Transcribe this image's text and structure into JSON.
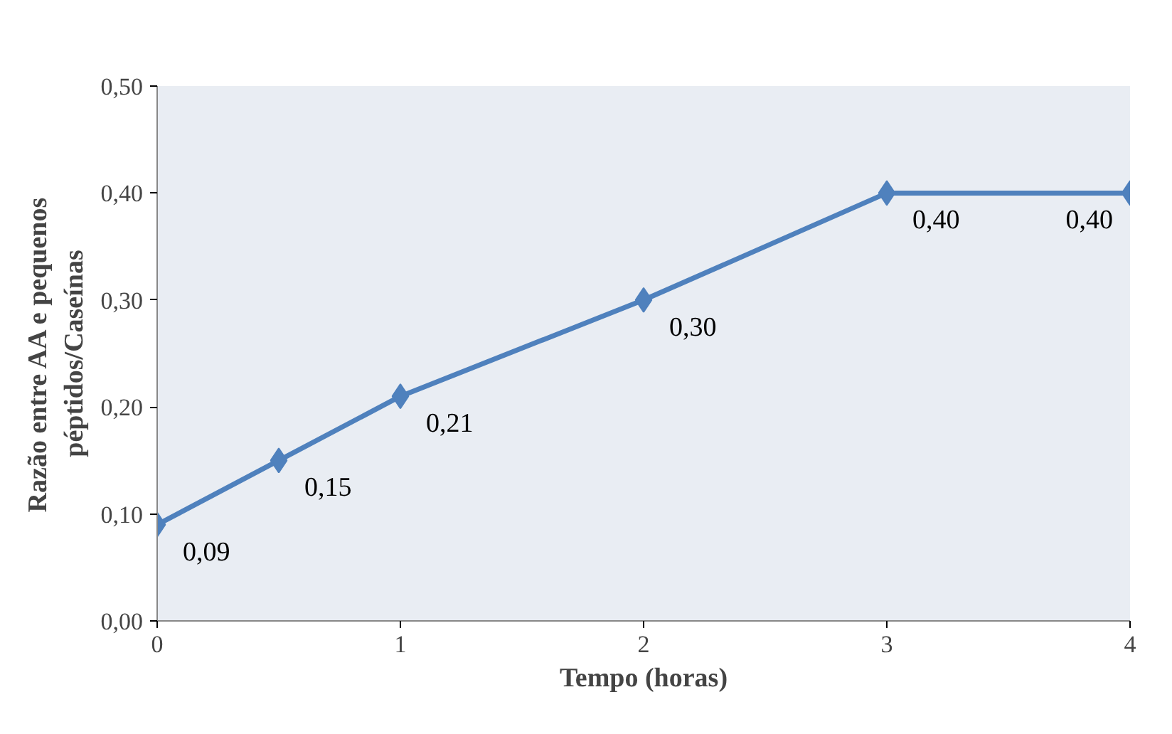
{
  "chart_data": {
    "type": "line",
    "xlabel": "Tempo (horas)",
    "ylabel": "Razão entre AA e pequenos\npéptidos/Caseínas",
    "x": [
      0,
      0.5,
      1,
      2,
      3,
      4
    ],
    "series": [
      {
        "color": "#4f81bd",
        "values": [
          0.09,
          0.15,
          0.21,
          0.3,
          0.4,
          0.4
        ],
        "value_labels": [
          "0,09",
          "0,15",
          "0,21",
          "0,30",
          "0,40",
          "0,40"
        ]
      }
    ],
    "xlim": [
      0,
      4
    ],
    "xticks": [
      0,
      1,
      2,
      3,
      4
    ],
    "ylim": [
      0,
      0.5
    ],
    "yticks": [
      {
        "value": 0,
        "label": "0,00"
      },
      {
        "value": 0.1,
        "label": "0,10"
      },
      {
        "value": 0.2,
        "label": "0,20"
      },
      {
        "value": 0.3,
        "label": "0,30"
      },
      {
        "value": 0.4,
        "label": "0,40"
      },
      {
        "value": 0.5,
        "label": "0,50"
      }
    ],
    "grid": false,
    "marker": "diamond",
    "line_style": "solid"
  }
}
